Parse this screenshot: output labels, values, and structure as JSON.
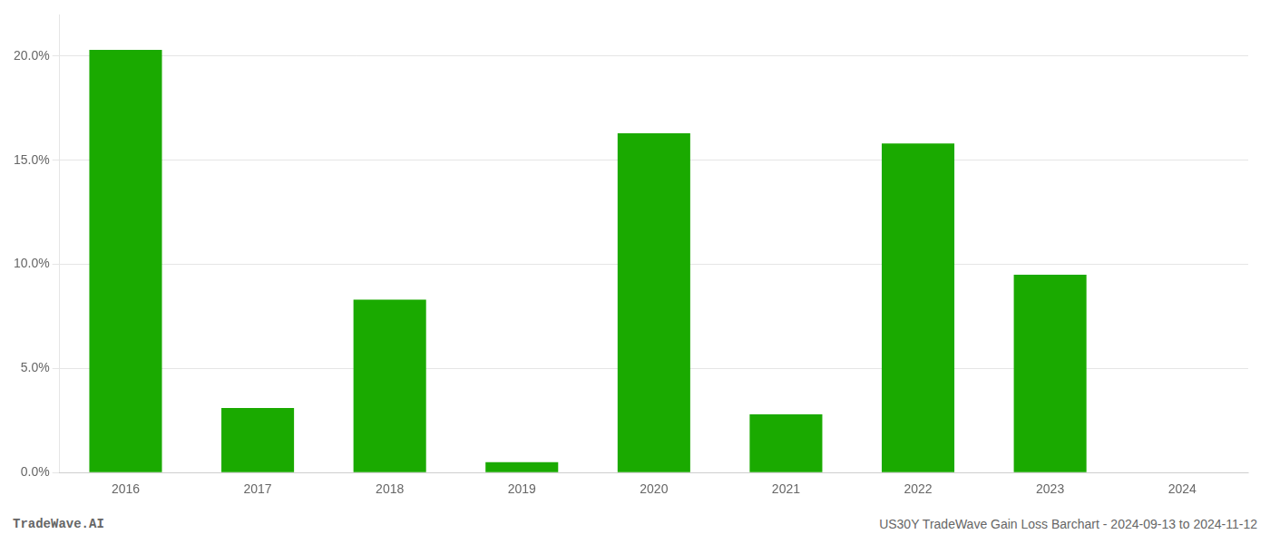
{
  "chart_data": {
    "type": "bar",
    "categories": [
      "2016",
      "2017",
      "2018",
      "2019",
      "2020",
      "2021",
      "2022",
      "2023",
      "2024"
    ],
    "values": [
      20.3,
      3.1,
      8.3,
      0.5,
      16.3,
      2.8,
      15.8,
      9.5,
      0.0
    ],
    "color": "#1aaa00",
    "ylim": [
      0,
      22
    ],
    "yticks": [
      {
        "value": 0.0,
        "label": "0.0%"
      },
      {
        "value": 5.0,
        "label": "5.0%"
      },
      {
        "value": 10.0,
        "label": "10.0%"
      },
      {
        "value": 15.0,
        "label": "15.0%"
      },
      {
        "value": 20.0,
        "label": "20.0%"
      }
    ],
    "grid": true,
    "annotations": [
      "TradeWave.AI",
      "US30Y TradeWave Gain Loss Barchart - 2024-09-13 to 2024-11-12"
    ]
  }
}
